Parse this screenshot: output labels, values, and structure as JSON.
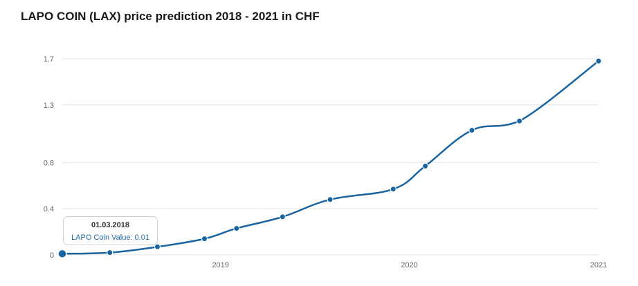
{
  "title": "LAPO COIN (LAX) price prediction 2018 - 2021 in CHF",
  "colors": {
    "line": "#1a64a0",
    "grid": "#e3e3e3",
    "axis_text": "#666666"
  },
  "tooltip": {
    "date": "01.03.2018",
    "value_text": "LAPO Coin Value: 0.01"
  },
  "chart_data": {
    "type": "line",
    "title": "LAPO COIN (LAX) price prediction 2018 - 2021 in CHF",
    "xlabel": "",
    "ylabel": "",
    "x_ticks": [
      "2019",
      "2020",
      "2021"
    ],
    "y_ticks": [
      "0",
      "0.4",
      "0.8",
      "1.3",
      "1.7"
    ],
    "y_tick_values": [
      0,
      0.4,
      0.8,
      1.3,
      1.7
    ],
    "xlim": [
      "2018-03-01",
      "2021-01-01"
    ],
    "ylim": [
      0,
      1.7
    ],
    "grid": true,
    "legend": "none",
    "series": [
      {
        "x": [
          "2018-03-01",
          "2018-06-01",
          "2018-09-01",
          "2018-12-01",
          "2019-02-01",
          "2019-05-01",
          "2019-08-01",
          "2019-12-01",
          "2020-02-01",
          "2020-05-01",
          "2020-08-01",
          "2021-01-01"
        ],
        "values": [
          0.01,
          0.02,
          0.07,
          0.14,
          0.23,
          0.33,
          0.48,
          0.57,
          0.77,
          1.08,
          1.16,
          1.68
        ]
      }
    ]
  }
}
